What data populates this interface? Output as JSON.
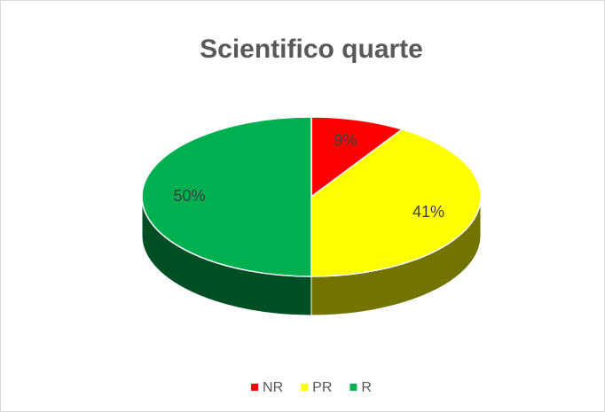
{
  "chart_data": {
    "type": "pie",
    "title": "Scientifico quarte",
    "categories": [
      "NR",
      "PR",
      "R"
    ],
    "values": [
      9,
      41,
      50
    ],
    "value_labels": [
      "9%",
      "41%",
      "50%"
    ],
    "colors": [
      "#ff0000",
      "#ffff00",
      "#00b050"
    ],
    "legend": "bottom"
  }
}
